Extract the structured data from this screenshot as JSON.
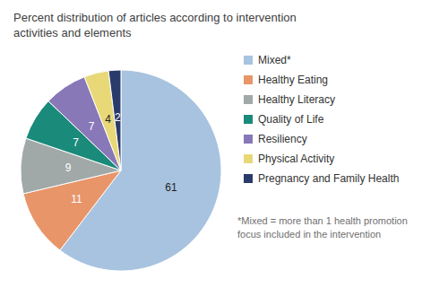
{
  "chart_data": {
    "type": "pie",
    "title": "Percent distribution of articles according to intervention\nactivities and elements",
    "categories": [
      "Mixed*",
      "Healthy Eating",
      "Healthy Literacy",
      "Quality of Life",
      "Resiliency",
      "Physical Activity",
      "Pregnancy and Family Health"
    ],
    "values": [
      61,
      11,
      9,
      7,
      7,
      4,
      2
    ],
    "colors": [
      "#a8c3e0",
      "#e8956a",
      "#a0a8a8",
      "#1a8a7a",
      "#8878b8",
      "#e8d878",
      "#2a3a6a"
    ],
    "data_labels": true,
    "legend": "right",
    "annotations": [
      "*Mixed = more than 1 health promotion\nfocus included in the intervention"
    ]
  }
}
